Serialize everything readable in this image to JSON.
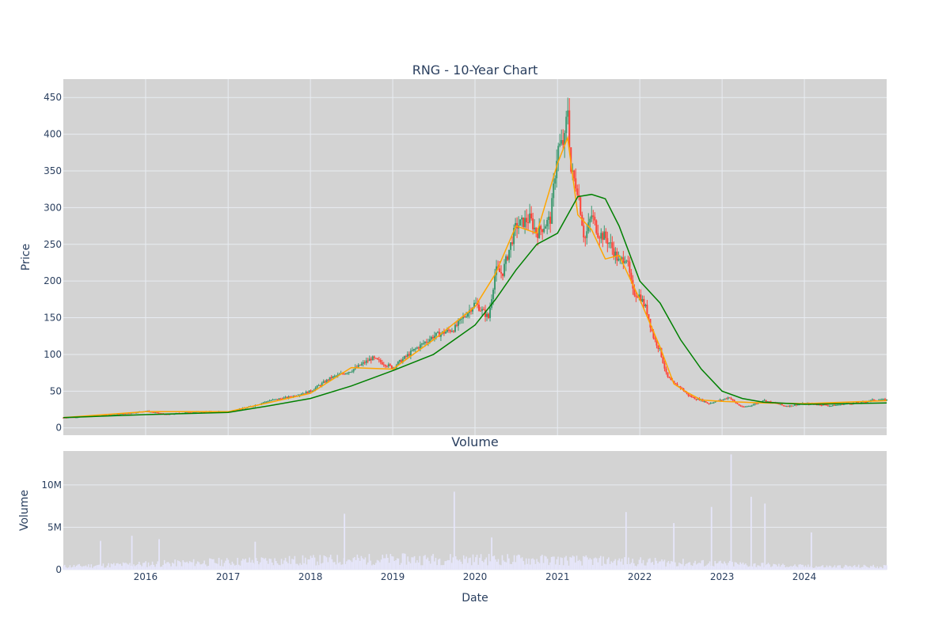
{
  "chart_data": [
    {
      "type": "candlestick",
      "title": "RNG - 10-Year Chart",
      "ylabel": "Price",
      "xlabel": "",
      "x_range": [
        "2015-01-01",
        "2024-12-31"
      ],
      "ylim": [
        -10,
        475
      ],
      "yticks": [
        0,
        50,
        100,
        150,
        200,
        250,
        300,
        350,
        400,
        450
      ],
      "xticks": [
        {
          "date": "2016-01-01",
          "label": "2016"
        },
        {
          "date": "2017-01-01",
          "label": "2017"
        },
        {
          "date": "2018-01-01",
          "label": "2018"
        },
        {
          "date": "2019-01-01",
          "label": "2019"
        },
        {
          "date": "2020-01-01",
          "label": "2020"
        },
        {
          "date": "2021-01-01",
          "label": "2021"
        },
        {
          "date": "2022-01-01",
          "label": "2022"
        },
        {
          "date": "2023-01-01",
          "label": "2023"
        },
        {
          "date": "2024-01-01",
          "label": "2024"
        }
      ],
      "grid": true,
      "legend": "none",
      "colors": {
        "background": "#d3d3d3",
        "grid": "#e8ecf2",
        "increasing": "#3d9970",
        "decreasing": "#ff4136",
        "ma_short": "#ffa500",
        "ma_long": "#008000"
      },
      "series": [
        {
          "type": "price_close",
          "x": [
            "2015-01-01",
            "2015-04-01",
            "2015-07-01",
            "2015-10-01",
            "2016-01-01",
            "2016-04-01",
            "2016-07-01",
            "2016-10-01",
            "2017-01-01",
            "2017-04-01",
            "2017-07-01",
            "2017-10-01",
            "2018-01-01",
            "2018-04-01",
            "2018-07-01",
            "2018-10-01",
            "2019-01-01",
            "2019-04-01",
            "2019-07-01",
            "2019-10-01",
            "2020-01-01",
            "2020-03-01",
            "2020-04-01",
            "2020-05-01",
            "2020-07-01",
            "2020-09-01",
            "2020-10-01",
            "2020-12-01",
            "2021-01-01",
            "2021-02-01",
            "2021-02-15",
            "2021-03-01",
            "2021-04-01",
            "2021-05-01",
            "2021-06-01",
            "2021-07-01",
            "2021-08-01",
            "2021-09-01",
            "2021-10-01",
            "2021-11-01",
            "2021-12-01",
            "2022-01-01",
            "2022-02-01",
            "2022-03-01",
            "2022-04-01",
            "2022-05-01",
            "2022-06-01",
            "2022-07-01",
            "2022-08-01",
            "2022-09-01",
            "2022-10-01",
            "2022-11-01",
            "2022-12-01",
            "2023-01-01",
            "2023-02-01",
            "2023-03-01",
            "2023-04-01",
            "2023-05-01",
            "2023-06-01",
            "2023-07-01",
            "2023-08-01",
            "2023-09-01",
            "2023-10-01",
            "2023-11-01",
            "2023-12-01",
            "2024-01-01",
            "2024-03-01",
            "2024-05-01",
            "2024-07-01",
            "2024-09-01",
            "2024-11-01",
            "2024-12-31"
          ],
          "y": [
            14,
            15,
            17,
            19,
            23,
            18,
            21,
            22,
            22,
            28,
            37,
            42,
            50,
            68,
            78,
            95,
            82,
            105,
            125,
            135,
            170,
            150,
            215,
            210,
            275,
            285,
            265,
            285,
            380,
            390,
            440,
            350,
            325,
            255,
            290,
            265,
            260,
            245,
            225,
            235,
            185,
            180,
            160,
            125,
            105,
            70,
            60,
            55,
            45,
            40,
            38,
            33,
            36,
            38,
            42,
            34,
            28,
            30,
            33,
            38,
            35,
            33,
            30,
            30,
            32,
            33,
            32,
            30,
            33,
            34,
            38,
            38
          ]
        },
        {
          "type": "ma_short",
          "name": "",
          "x": [
            "2015-01-01",
            "2016-01-01",
            "2017-01-01",
            "2018-01-01",
            "2018-07-01",
            "2019-01-01",
            "2019-07-01",
            "2020-01-01",
            "2020-04-01",
            "2020-07-01",
            "2020-10-01",
            "2021-01-01",
            "2021-02-15",
            "2021-04-01",
            "2021-06-01",
            "2021-08-01",
            "2021-10-01",
            "2022-01-01",
            "2022-04-01",
            "2022-06-01",
            "2022-08-01",
            "2022-10-01",
            "2023-01-01",
            "2023-07-01",
            "2024-01-01",
            "2024-12-31"
          ],
          "y": [
            14,
            22,
            22,
            47,
            82,
            80,
            120,
            165,
            210,
            275,
            265,
            360,
            395,
            290,
            270,
            230,
            235,
            175,
            110,
            60,
            48,
            38,
            36,
            34,
            33,
            37
          ]
        },
        {
          "type": "ma_long",
          "name": "",
          "x": [
            "2015-01-01",
            "2016-01-01",
            "2017-01-01",
            "2017-07-01",
            "2018-01-01",
            "2018-07-01",
            "2019-01-01",
            "2019-07-01",
            "2020-01-01",
            "2020-04-01",
            "2020-07-01",
            "2020-10-01",
            "2021-01-01",
            "2021-04-01",
            "2021-06-01",
            "2021-08-01",
            "2021-10-01",
            "2022-01-01",
            "2022-04-01",
            "2022-07-01",
            "2022-10-01",
            "2023-01-01",
            "2023-04-01",
            "2023-07-01",
            "2024-01-01",
            "2024-12-31"
          ],
          "y": [
            14,
            18,
            21,
            30,
            40,
            57,
            78,
            100,
            140,
            175,
            215,
            250,
            265,
            315,
            318,
            312,
            275,
            200,
            170,
            120,
            80,
            50,
            40,
            35,
            32,
            34
          ]
        }
      ]
    },
    {
      "type": "bar",
      "title": "Volume",
      "ylabel": "Volume",
      "xlabel": "Date",
      "x_range": [
        "2015-01-01",
        "2024-12-31"
      ],
      "ylim": [
        0,
        14000000
      ],
      "yticks": [
        {
          "value": 0,
          "label": "0"
        },
        {
          "value": 5000000,
          "label": "5M"
        },
        {
          "value": 10000000,
          "label": "10M"
        }
      ],
      "grid": true,
      "colors": {
        "bar": "#e6e6fa"
      },
      "spikes": [
        {
          "date": "2015-06-15",
          "value": 3400000
        },
        {
          "date": "2015-11-01",
          "value": 4000000
        },
        {
          "date": "2016-03-01",
          "value": 3600000
        },
        {
          "date": "2017-05-01",
          "value": 3300000
        },
        {
          "date": "2018-06-01",
          "value": 6600000
        },
        {
          "date": "2019-10-01",
          "value": 9200000
        },
        {
          "date": "2020-03-15",
          "value": 3800000
        },
        {
          "date": "2021-11-01",
          "value": 6800000
        },
        {
          "date": "2022-06-01",
          "value": 5500000
        },
        {
          "date": "2022-11-15",
          "value": 7400000
        },
        {
          "date": "2023-02-10",
          "value": 13600000
        },
        {
          "date": "2023-05-10",
          "value": 8600000
        },
        {
          "date": "2023-07-10",
          "value": 7800000
        },
        {
          "date": "2024-02-01",
          "value": 4400000
        }
      ]
    }
  ]
}
